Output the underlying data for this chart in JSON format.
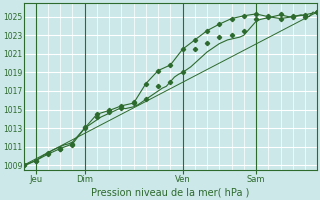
{
  "title": "",
  "xlabel": "Pression niveau de la mer( hPa )",
  "bg_color": "#cce8e8",
  "grid_color": "#ffffff",
  "line_color": "#2d6a2d",
  "spine_color": "#2d6a2d",
  "ylim": [
    1008.5,
    1026.5
  ],
  "yticks": [
    1009,
    1011,
    1013,
    1015,
    1017,
    1019,
    1021,
    1023,
    1025
  ],
  "xlim": [
    0,
    144
  ],
  "day_labels": [
    "Jeu",
    "Dim",
    "Ven",
    "Sam"
  ],
  "day_positions": [
    6,
    30,
    78,
    114
  ],
  "vline_positions": [
    6,
    30,
    78,
    114
  ],
  "series1_x": [
    0,
    2,
    4,
    6,
    8,
    10,
    12,
    14,
    16,
    18,
    20,
    22,
    24,
    26,
    28,
    30,
    32,
    34,
    36,
    38,
    40,
    42,
    44,
    46,
    48,
    50,
    52,
    54,
    56,
    58,
    60,
    62,
    64,
    66,
    68,
    70,
    72,
    74,
    76,
    78,
    80,
    82,
    84,
    86,
    88,
    90,
    92,
    94,
    96,
    98,
    100,
    102,
    104,
    106,
    108,
    110,
    112,
    114,
    116,
    118,
    120,
    122,
    124,
    126,
    128,
    130,
    132,
    134,
    136,
    138,
    140,
    142
  ],
  "series1_y": [
    1009,
    1009.1,
    1009.3,
    1009.5,
    1009.8,
    1010.1,
    1010.3,
    1010.6,
    1010.8,
    1011.0,
    1011.2,
    1011.3,
    1011.5,
    1012.0,
    1012.5,
    1013.0,
    1013.3,
    1013.6,
    1013.9,
    1014.2,
    1014.4,
    1014.6,
    1014.8,
    1015.0,
    1015.2,
    1015.1,
    1015.2,
    1015.3,
    1015.5,
    1015.8,
    1016.1,
    1016.4,
    1016.7,
    1017.0,
    1017.3,
    1017.5,
    1018.0,
    1018.5,
    1018.8,
    1019.0,
    1019.3,
    1019.6,
    1020.0,
    1020.4,
    1020.8,
    1021.2,
    1021.5,
    1021.8,
    1022.1,
    1022.3,
    1022.5,
    1022.6,
    1022.7,
    1022.8,
    1023.0,
    1023.5,
    1024.0,
    1024.5,
    1024.7,
    1024.8,
    1024.9,
    1025.0,
    1025.1,
    1025.2,
    1025.1,
    1025.0,
    1025.0,
    1025.1,
    1025.2,
    1025.1,
    1025.0,
    1025.5
  ],
  "series2_x": [
    0,
    6,
    12,
    18,
    24,
    30,
    36,
    42,
    48,
    54,
    60,
    66,
    72,
    78,
    84,
    90,
    96,
    102,
    108,
    114,
    120,
    126,
    132,
    138,
    144
  ],
  "series2_y": [
    1009,
    1009.5,
    1010.2,
    1010.8,
    1011.3,
    1013.0,
    1014.5,
    1014.9,
    1015.4,
    1015.7,
    1017.8,
    1019.2,
    1019.8,
    1021.5,
    1022.5,
    1023.5,
    1024.2,
    1024.8,
    1025.1,
    1025.3,
    1025.0,
    1024.8,
    1025.0,
    1025.2,
    1025.5
  ],
  "series3_x": [
    0,
    144
  ],
  "series3_y": [
    1009,
    1025.5
  ],
  "marker_x": [
    0,
    6,
    12,
    18,
    24,
    30,
    36,
    42,
    48,
    54,
    60,
    66,
    72,
    78,
    84,
    90,
    96,
    102,
    108,
    114,
    120,
    126,
    132,
    138,
    144
  ],
  "marker_y1": [
    1009,
    1009.5,
    1010.3,
    1010.8,
    1011.3,
    1013.0,
    1014.5,
    1014.9,
    1015.4,
    1015.7,
    1017.8,
    1019.2,
    1019.8,
    1021.5,
    1022.5,
    1023.5,
    1024.2,
    1024.8,
    1025.1,
    1025.3,
    1025.0,
    1024.8,
    1025.0,
    1025.2,
    1025.5
  ],
  "marker_y2": [
    1009,
    1009.5,
    1010.2,
    1010.8,
    1011.2,
    1013.1,
    1014.2,
    1014.7,
    1015.2,
    1015.8,
    1016.1,
    1017.5,
    1018.0,
    1019.0,
    1021.5,
    1022.2,
    1022.8,
    1023.0,
    1023.5,
    1024.8,
    1025.1,
    1025.3,
    1025.1,
    1025.0,
    1025.5
  ]
}
